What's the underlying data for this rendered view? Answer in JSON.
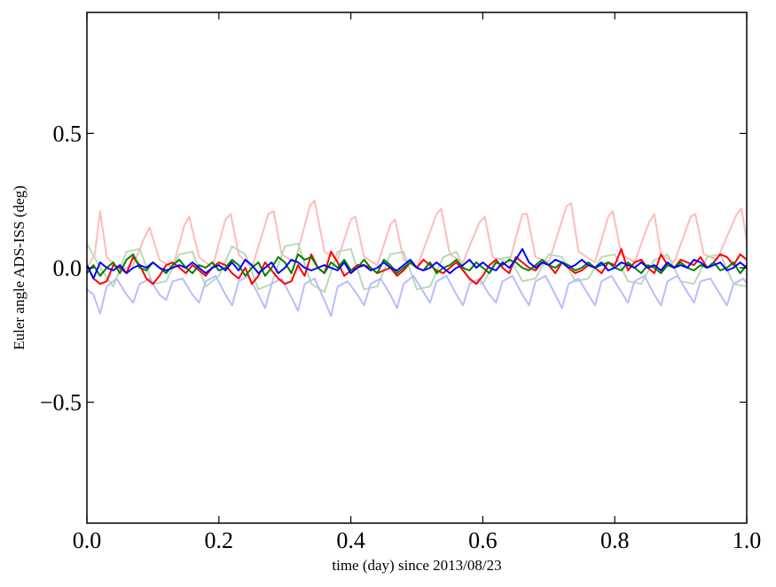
{
  "chart_data": {
    "type": "line",
    "title": "",
    "xlabel": "time (day) since 2013/08/23",
    "ylabel": "Euler angle ADS-ISS (deg)",
    "xlim": [
      0.0,
      1.0
    ],
    "ylim": [
      -0.95,
      0.95
    ],
    "xticks": [
      0.0,
      0.2,
      0.4,
      0.6,
      0.8,
      1.0
    ],
    "xtick_labels": [
      "0.0",
      "0.2",
      "0.4",
      "0.6",
      "0.8",
      "1.0"
    ],
    "yticks": [
      -0.5,
      0.0,
      0.5
    ],
    "ytick_labels": [
      "−0.5",
      "0.0",
      "0.5"
    ],
    "grid": false,
    "legend": "none",
    "colors": {
      "red": "#ff0000",
      "green": "#008000",
      "blue": "#0000ff",
      "red_faint": "#ffbbbb",
      "green_faint": "#b6dbb6",
      "blue_faint": "#bbbbff"
    },
    "series": [
      {
        "color": "#ffbbbb",
        "x": [
          0.0,
          0.012,
          0.02,
          0.03,
          0.05,
          0.07,
          0.085,
          0.095,
          0.11,
          0.13,
          0.148,
          0.155,
          0.17,
          0.19,
          0.21,
          0.218,
          0.23,
          0.25,
          0.275,
          0.283,
          0.295,
          0.315,
          0.338,
          0.345,
          0.36,
          0.38,
          0.4,
          0.407,
          0.42,
          0.44,
          0.46,
          0.467,
          0.48,
          0.5,
          0.53,
          0.537,
          0.55,
          0.57,
          0.595,
          0.603,
          0.615,
          0.64,
          0.66,
          0.667,
          0.68,
          0.7,
          0.727,
          0.734,
          0.745,
          0.77,
          0.79,
          0.797,
          0.81,
          0.83,
          0.852,
          0.86,
          0.87,
          0.89,
          0.915,
          0.922,
          0.935,
          0.955,
          0.985,
          0.992,
          1.0
        ],
        "y": [
          0.0,
          0.05,
          0.21,
          0.04,
          -0.01,
          0.01,
          0.1,
          0.15,
          0.03,
          0.0,
          0.16,
          0.19,
          0.04,
          0.0,
          0.18,
          0.2,
          0.05,
          0.0,
          0.2,
          0.21,
          0.05,
          0.02,
          0.23,
          0.25,
          0.06,
          0.03,
          0.18,
          0.19,
          0.04,
          0.01,
          0.16,
          0.18,
          0.03,
          0.0,
          0.2,
          0.22,
          0.05,
          0.02,
          0.17,
          0.19,
          0.04,
          0.02,
          0.2,
          0.2,
          0.04,
          0.02,
          0.23,
          0.24,
          0.06,
          0.02,
          0.19,
          0.21,
          0.05,
          0.02,
          0.17,
          0.2,
          0.05,
          0.02,
          0.19,
          0.2,
          0.05,
          0.03,
          0.2,
          0.22,
          0.1
        ]
      },
      {
        "color": "#b6dbb6",
        "x": [
          0.0,
          0.02,
          0.04,
          0.06,
          0.08,
          0.1,
          0.12,
          0.14,
          0.16,
          0.18,
          0.2,
          0.22,
          0.24,
          0.26,
          0.28,
          0.3,
          0.32,
          0.34,
          0.36,
          0.38,
          0.4,
          0.42,
          0.44,
          0.46,
          0.48,
          0.5,
          0.52,
          0.54,
          0.56,
          0.58,
          0.6,
          0.62,
          0.64,
          0.66,
          0.68,
          0.7,
          0.72,
          0.74,
          0.76,
          0.78,
          0.8,
          0.82,
          0.84,
          0.86,
          0.88,
          0.9,
          0.92,
          0.94,
          0.96,
          0.98,
          1.0
        ],
        "y": [
          0.09,
          0.0,
          -0.07,
          0.06,
          0.07,
          -0.06,
          -0.05,
          0.05,
          0.06,
          -0.07,
          -0.03,
          0.08,
          0.05,
          -0.08,
          -0.06,
          0.08,
          0.09,
          -0.06,
          -0.09,
          0.06,
          0.07,
          -0.08,
          -0.07,
          0.05,
          0.06,
          -0.08,
          -0.07,
          0.04,
          0.06,
          -0.05,
          -0.06,
          0.03,
          0.04,
          -0.05,
          -0.04,
          0.05,
          0.04,
          -0.05,
          -0.04,
          0.04,
          0.05,
          -0.05,
          -0.06,
          0.03,
          0.05,
          -0.05,
          -0.06,
          0.04,
          0.05,
          -0.06,
          -0.07
        ]
      },
      {
        "color": "#bbbbff",
        "x": [
          0.0,
          0.01,
          0.02,
          0.03,
          0.045,
          0.06,
          0.07,
          0.08,
          0.095,
          0.11,
          0.12,
          0.13,
          0.145,
          0.16,
          0.17,
          0.18,
          0.195,
          0.21,
          0.22,
          0.23,
          0.245,
          0.26,
          0.27,
          0.28,
          0.295,
          0.31,
          0.32,
          0.33,
          0.345,
          0.36,
          0.37,
          0.38,
          0.395,
          0.41,
          0.42,
          0.43,
          0.445,
          0.46,
          0.47,
          0.48,
          0.495,
          0.51,
          0.52,
          0.53,
          0.545,
          0.56,
          0.57,
          0.58,
          0.595,
          0.61,
          0.62,
          0.63,
          0.645,
          0.66,
          0.67,
          0.68,
          0.695,
          0.71,
          0.72,
          0.73,
          0.745,
          0.76,
          0.77,
          0.78,
          0.795,
          0.81,
          0.82,
          0.83,
          0.845,
          0.86,
          0.87,
          0.88,
          0.895,
          0.91,
          0.92,
          0.93,
          0.945,
          0.96,
          0.97,
          0.98,
          0.995,
          1.0
        ],
        "y": [
          -0.08,
          -0.1,
          -0.17,
          -0.07,
          -0.04,
          -0.1,
          -0.13,
          -0.06,
          -0.04,
          -0.1,
          -0.12,
          -0.05,
          -0.04,
          -0.1,
          -0.13,
          -0.05,
          -0.03,
          -0.1,
          -0.14,
          -0.05,
          -0.03,
          -0.1,
          -0.15,
          -0.06,
          -0.04,
          -0.11,
          -0.16,
          -0.06,
          -0.04,
          -0.12,
          -0.18,
          -0.07,
          -0.05,
          -0.1,
          -0.14,
          -0.06,
          -0.04,
          -0.1,
          -0.15,
          -0.06,
          -0.03,
          -0.09,
          -0.13,
          -0.05,
          -0.03,
          -0.1,
          -0.14,
          -0.06,
          -0.04,
          -0.1,
          -0.13,
          -0.05,
          -0.03,
          -0.1,
          -0.14,
          -0.05,
          -0.03,
          -0.1,
          -0.15,
          -0.06,
          -0.04,
          -0.1,
          -0.14,
          -0.05,
          -0.03,
          -0.09,
          -0.13,
          -0.05,
          -0.03,
          -0.1,
          -0.14,
          -0.05,
          -0.03,
          -0.09,
          -0.13,
          -0.05,
          -0.04,
          -0.1,
          -0.14,
          -0.06,
          -0.04,
          -0.06
        ]
      },
      {
        "color": "#ff0000",
        "x": [
          0.0,
          0.01,
          0.02,
          0.03,
          0.04,
          0.05,
          0.06,
          0.07,
          0.08,
          0.09,
          0.1,
          0.11,
          0.12,
          0.13,
          0.14,
          0.15,
          0.16,
          0.17,
          0.18,
          0.19,
          0.2,
          0.21,
          0.22,
          0.23,
          0.24,
          0.25,
          0.26,
          0.27,
          0.28,
          0.29,
          0.3,
          0.31,
          0.32,
          0.33,
          0.34,
          0.35,
          0.36,
          0.37,
          0.38,
          0.39,
          0.4,
          0.41,
          0.42,
          0.43,
          0.44,
          0.45,
          0.46,
          0.47,
          0.48,
          0.49,
          0.5,
          0.51,
          0.52,
          0.53,
          0.54,
          0.55,
          0.56,
          0.57,
          0.58,
          0.59,
          0.6,
          0.61,
          0.62,
          0.63,
          0.64,
          0.65,
          0.66,
          0.67,
          0.68,
          0.69,
          0.7,
          0.71,
          0.72,
          0.73,
          0.74,
          0.75,
          0.76,
          0.77,
          0.78,
          0.79,
          0.8,
          0.81,
          0.82,
          0.83,
          0.84,
          0.85,
          0.86,
          0.87,
          0.88,
          0.89,
          0.9,
          0.91,
          0.92,
          0.93,
          0.94,
          0.95,
          0.96,
          0.97,
          0.98,
          0.99,
          1.0
        ],
        "y": [
          0.01,
          -0.04,
          -0.06,
          -0.05,
          0.01,
          0.0,
          -0.02,
          0.04,
          0.01,
          -0.04,
          -0.06,
          -0.03,
          0.01,
          0.02,
          0.0,
          -0.02,
          0.01,
          -0.01,
          -0.03,
          0.0,
          0.02,
          0.01,
          -0.02,
          -0.04,
          0.0,
          -0.06,
          -0.03,
          0.02,
          -0.01,
          -0.04,
          -0.06,
          -0.05,
          0.01,
          -0.03,
          0.05,
          0.0,
          -0.02,
          0.06,
          0.02,
          -0.03,
          -0.01,
          0.01,
          0.01,
          0.0,
          -0.02,
          -0.01,
          0.0,
          -0.03,
          -0.01,
          0.02,
          0.0,
          0.03,
          0.01,
          -0.01,
          -0.02,
          0.0,
          0.02,
          -0.01,
          -0.04,
          -0.06,
          -0.03,
          0.01,
          0.03,
          0.0,
          -0.02,
          0.04,
          0.02,
          0.0,
          -0.01,
          0.02,
          0.01,
          -0.02,
          0.02,
          0.0,
          -0.02,
          -0.01,
          0.01,
          0.0,
          -0.02,
          0.02,
          0.01,
          0.07,
          -0.01,
          0.02,
          0.03,
          0.0,
          -0.02,
          0.05,
          0.01,
          0.0,
          0.03,
          0.02,
          0.01,
          0.04,
          0.0,
          0.02,
          0.05,
          0.04,
          0.01,
          0.05,
          0.03
        ]
      },
      {
        "color": "#008000",
        "x": [
          0.0,
          0.01,
          0.02,
          0.03,
          0.04,
          0.05,
          0.06,
          0.07,
          0.08,
          0.09,
          0.1,
          0.11,
          0.12,
          0.13,
          0.14,
          0.15,
          0.16,
          0.17,
          0.18,
          0.19,
          0.2,
          0.21,
          0.22,
          0.23,
          0.24,
          0.25,
          0.26,
          0.27,
          0.28,
          0.29,
          0.3,
          0.31,
          0.32,
          0.33,
          0.34,
          0.35,
          0.36,
          0.37,
          0.38,
          0.39,
          0.4,
          0.41,
          0.42,
          0.43,
          0.44,
          0.45,
          0.46,
          0.47,
          0.48,
          0.49,
          0.5,
          0.51,
          0.52,
          0.53,
          0.54,
          0.55,
          0.56,
          0.57,
          0.58,
          0.59,
          0.6,
          0.61,
          0.62,
          0.63,
          0.64,
          0.65,
          0.66,
          0.67,
          0.68,
          0.69,
          0.7,
          0.71,
          0.72,
          0.73,
          0.74,
          0.75,
          0.76,
          0.77,
          0.78,
          0.79,
          0.8,
          0.81,
          0.82,
          0.83,
          0.84,
          0.85,
          0.86,
          0.87,
          0.88,
          0.89,
          0.9,
          0.91,
          0.92,
          0.93,
          0.94,
          0.95,
          0.96,
          0.97,
          0.98,
          0.99,
          1.0
        ],
        "y": [
          -0.02,
          0.01,
          -0.03,
          0.0,
          0.02,
          -0.02,
          0.03,
          0.05,
          0.0,
          -0.01,
          0.02,
          0.0,
          -0.02,
          0.01,
          0.03,
          0.0,
          -0.02,
          0.01,
          0.0,
          0.02,
          -0.01,
          0.0,
          0.03,
          0.01,
          -0.03,
          0.0,
          0.02,
          -0.03,
          0.0,
          0.04,
          0.02,
          -0.02,
          0.05,
          0.03,
          0.04,
          0.0,
          -0.02,
          0.02,
          0.0,
          0.03,
          -0.01,
          0.0,
          0.03,
          0.0,
          -0.02,
          0.03,
          0.01,
          -0.02,
          0.0,
          0.02,
          0.0,
          -0.01,
          0.02,
          -0.02,
          0.0,
          0.01,
          0.03,
          0.0,
          -0.01,
          0.02,
          0.0,
          -0.02,
          0.02,
          0.01,
          0.03,
          0.02,
          0.0,
          -0.01,
          0.01,
          0.03,
          0.01,
          0.0,
          0.02,
          0.01,
          -0.01,
          0.0,
          0.02,
          0.0,
          0.01,
          0.02,
          0.0,
          -0.01,
          0.02,
          0.0,
          -0.02,
          0.01,
          0.0,
          -0.02,
          0.01,
          0.0,
          0.02,
          0.0,
          -0.01,
          0.01,
          0.0,
          0.02,
          -0.01,
          0.0,
          0.02,
          -0.02,
          0.01
        ]
      },
      {
        "color": "#0000ff",
        "x": [
          0.0,
          0.01,
          0.02,
          0.03,
          0.04,
          0.05,
          0.06,
          0.07,
          0.08,
          0.09,
          0.1,
          0.11,
          0.12,
          0.13,
          0.14,
          0.15,
          0.16,
          0.17,
          0.18,
          0.19,
          0.2,
          0.21,
          0.22,
          0.23,
          0.24,
          0.25,
          0.26,
          0.27,
          0.28,
          0.29,
          0.3,
          0.31,
          0.32,
          0.33,
          0.34,
          0.35,
          0.36,
          0.37,
          0.38,
          0.39,
          0.4,
          0.41,
          0.42,
          0.43,
          0.44,
          0.45,
          0.46,
          0.47,
          0.48,
          0.49,
          0.5,
          0.51,
          0.52,
          0.53,
          0.54,
          0.55,
          0.56,
          0.57,
          0.58,
          0.59,
          0.6,
          0.61,
          0.62,
          0.63,
          0.64,
          0.65,
          0.66,
          0.67,
          0.68,
          0.69,
          0.7,
          0.71,
          0.72,
          0.73,
          0.74,
          0.75,
          0.76,
          0.77,
          0.78,
          0.79,
          0.8,
          0.81,
          0.82,
          0.83,
          0.84,
          0.85,
          0.86,
          0.87,
          0.88,
          0.89,
          0.9,
          0.91,
          0.92,
          0.93,
          0.94,
          0.95,
          0.96,
          0.97,
          0.98,
          0.99,
          1.0
        ],
        "y": [
          0.01,
          -0.04,
          0.02,
          0.0,
          -0.01,
          0.01,
          -0.02,
          0.0,
          0.01,
          0.0,
          0.02,
          0.0,
          -0.01,
          0.0,
          0.01,
          0.0,
          0.02,
          0.0,
          -0.02,
          0.0,
          0.01,
          -0.01,
          0.02,
          -0.01,
          0.03,
          0.01,
          -0.02,
          0.0,
          0.02,
          -0.02,
          0.0,
          0.03,
          0.02,
          0.0,
          -0.01,
          0.0,
          0.01,
          0.0,
          -0.01,
          0.02,
          -0.02,
          0.0,
          0.01,
          -0.01,
          0.0,
          0.02,
          0.0,
          -0.01,
          0.01,
          0.03,
          0.0,
          -0.01,
          0.0,
          0.02,
          0.0,
          -0.02,
          0.0,
          0.01,
          0.03,
          0.0,
          0.02,
          0.0,
          -0.01,
          0.02,
          0.0,
          0.03,
          0.07,
          0.02,
          0.0,
          0.02,
          0.01,
          0.03,
          0.02,
          0.0,
          0.01,
          0.03,
          0.01,
          0.0,
          0.02,
          -0.01,
          0.0,
          0.02,
          0.01,
          0.0,
          0.02,
          0.0,
          0.01,
          -0.01,
          0.02,
          0.0,
          0.01,
          0.0,
          0.03,
          0.02,
          0.0,
          0.01,
          0.02,
          -0.01,
          0.0,
          0.02,
          0.0
        ]
      }
    ]
  }
}
